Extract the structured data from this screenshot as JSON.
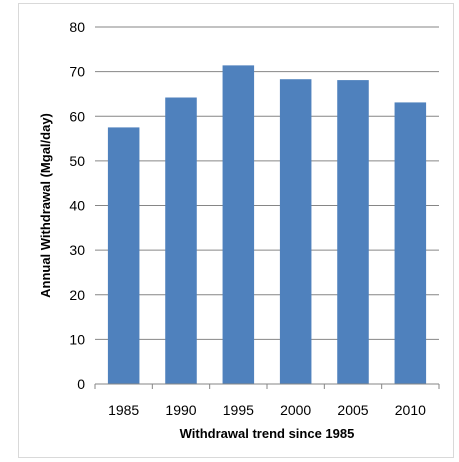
{
  "chart_data": {
    "type": "bar",
    "title": "",
    "categories": [
      "1985",
      "1990",
      "1995",
      "2000",
      "2005",
      "2010"
    ],
    "values": [
      57.5,
      64.2,
      71.4,
      68.3,
      68.1,
      63.1
    ],
    "xlabel": "Withdrawal trend since 1985",
    "ylabel": "Annual Withdrawal (Mgal/day)",
    "ylim": [
      0,
      80
    ],
    "yticks": [
      0,
      10,
      20,
      30,
      40,
      50,
      60,
      70,
      80
    ],
    "grid": true,
    "legend": "none",
    "bar_color": "#4F81BD",
    "grid_color": "#868686"
  }
}
